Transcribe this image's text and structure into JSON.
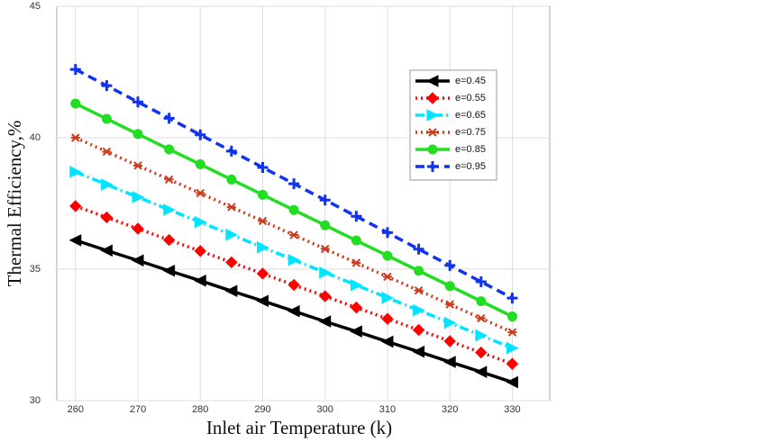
{
  "chart_data": {
    "type": "line",
    "x_label": "Inlet air Temperature (k)",
    "y_label": "Thermal Efficiency,%",
    "x": [
      260,
      265,
      270,
      275,
      280,
      285,
      290,
      295,
      300,
      305,
      310,
      315,
      320,
      325,
      330
    ],
    "xlim": [
      257,
      336
    ],
    "xticks": [
      260,
      270,
      280,
      290,
      300,
      310,
      320,
      330
    ],
    "ylim": [
      30,
      45
    ],
    "yticks": [
      30,
      35,
      40,
      45
    ],
    "grid": true,
    "legend_position": "upper-right",
    "series": [
      {
        "name": "e=0.45",
        "color": "#000000",
        "marker": "triangle-left",
        "linestyle": "solid",
        "values": [
          36.1,
          35.71,
          35.33,
          34.94,
          34.56,
          34.17,
          33.79,
          33.4,
          33.01,
          32.63,
          32.24,
          31.86,
          31.47,
          31.09,
          30.7
        ]
      },
      {
        "name": "e=0.55",
        "color": "#ff0000",
        "marker": "diamond",
        "linestyle": "dotted",
        "values": [
          37.4,
          36.97,
          36.54,
          36.11,
          35.69,
          35.26,
          34.83,
          34.4,
          33.97,
          33.54,
          33.11,
          32.69,
          32.26,
          31.83,
          31.4
        ]
      },
      {
        "name": "e=0.65",
        "color": "#00e5ff",
        "marker": "triangle-right",
        "linestyle": "dashdot",
        "values": [
          38.7,
          38.22,
          37.74,
          37.26,
          36.79,
          36.31,
          35.83,
          35.35,
          34.87,
          34.39,
          33.91,
          33.44,
          32.96,
          32.48,
          32.0
        ]
      },
      {
        "name": "e=0.75",
        "color": "#d03a1c",
        "marker": "star",
        "linestyle": "dotted",
        "values": [
          40.0,
          39.47,
          38.94,
          38.41,
          37.89,
          37.36,
          36.83,
          36.3,
          35.77,
          35.24,
          34.71,
          34.19,
          33.66,
          33.13,
          32.6
        ]
      },
      {
        "name": "e=0.85",
        "color": "#22dd22",
        "marker": "circle",
        "linestyle": "solid",
        "values": [
          41.3,
          40.72,
          40.14,
          39.56,
          38.99,
          38.41,
          37.83,
          37.25,
          36.67,
          36.09,
          35.51,
          34.94,
          34.36,
          33.78,
          33.2
        ]
      },
      {
        "name": "e=0.95",
        "color": "#1133ee",
        "marker": "plus",
        "linestyle": "dashed",
        "values": [
          42.6,
          41.98,
          41.36,
          40.74,
          40.11,
          39.49,
          38.87,
          38.25,
          37.63,
          37.01,
          36.39,
          35.76,
          35.14,
          34.52,
          33.9
        ]
      }
    ]
  }
}
